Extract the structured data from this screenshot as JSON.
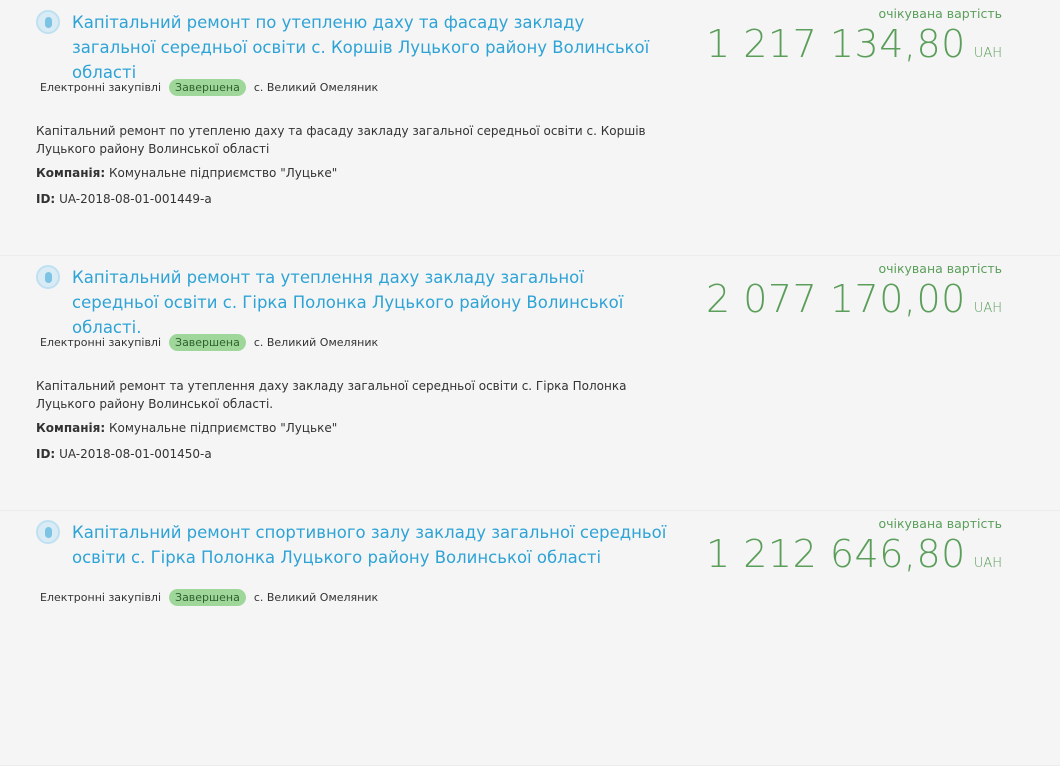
{
  "labels": {
    "expected": "очікувана вартість",
    "currency": "UAH",
    "company": "Компанія:",
    "id": "ID:"
  },
  "items": [
    {
      "title": "Капітальний ремонт по утепленю даху та фасаду закладу загальної середньої освіти с. Коршів Луцького району Волинської області",
      "amount": "1 217 134,80",
      "type": "Електронні закупівлі",
      "status": "Завершена",
      "location": "с. Великий Омеляник",
      "description": "Капітальний ремонт по утепленю даху та фасаду закладу загальної середньої освіти с. Коршів Луцького району Волинської області",
      "company": "Комунальне підприємство \"Луцьке\"",
      "id": "UA-2018-08-01-001449-a"
    },
    {
      "title": "Капітальний ремонт та утеплення даху закладу загальної середньої освіти с. Гірка Полонка Луцького району Волинської області.",
      "amount": "2 077 170,00",
      "type": "Електронні закупівлі",
      "status": "Завершена",
      "location": "с. Великий Омеляник",
      "description": "Капітальний ремонт та утеплення даху закладу загальної середньої освіти с. Гірка Полонка Луцького району Волинської області.",
      "company": "Комунальне підприємство \"Луцьке\"",
      "id": "UA-2018-08-01-001450-a"
    },
    {
      "title": "Капітальний ремонт спортивного залу закладу загальної середньої освіти с. Гірка Полонка Луцького району Волинської області",
      "amount": "1 212 646,80",
      "type": "Електронні закупівлі",
      "status": "Завершена",
      "location": "с. Великий Омеляник"
    }
  ]
}
